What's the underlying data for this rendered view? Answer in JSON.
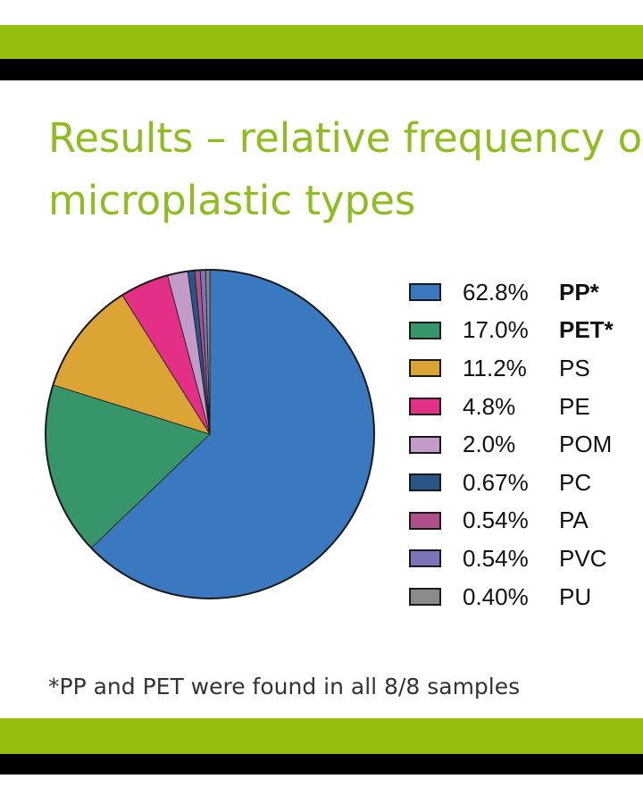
{
  "slide": {
    "title_line1": "Results – relative frequency of",
    "title_line2": "microplastic types",
    "footnote": "*PP and PET were found in all 8/8 samples"
  },
  "colors": {
    "accent_green": "#95bf0f",
    "band_black": "#000000",
    "title_green": "#8fbc1f"
  },
  "chart_data": {
    "type": "pie",
    "title": "",
    "start": "12 o'clock",
    "direction": "clockwise",
    "legend_position": "right",
    "slices": [
      {
        "label": "PP*",
        "pct_label": "62.8%",
        "value": 62.8,
        "color": "#3a78bf",
        "bold": true
      },
      {
        "label": "PET*",
        "pct_label": "17.0%",
        "value": 17.0,
        "color": "#36966a",
        "bold": true
      },
      {
        "label": "PS",
        "pct_label": "11.2%",
        "value": 11.2,
        "color": "#dca435",
        "bold": false
      },
      {
        "label": "PE",
        "pct_label": "4.8%",
        "value": 4.8,
        "color": "#e33086",
        "bold": false
      },
      {
        "label": "POM",
        "pct_label": "2.0%",
        "value": 2.0,
        "color": "#c29bc8",
        "bold": false
      },
      {
        "label": "PC",
        "pct_label": "0.67%",
        "value": 0.67,
        "color": "#2a5587",
        "bold": false
      },
      {
        "label": "PA",
        "pct_label": "0.54%",
        "value": 0.54,
        "color": "#b0508a",
        "bold": false
      },
      {
        "label": "PVC",
        "pct_label": "0.54%",
        "value": 0.54,
        "color": "#7b74b8",
        "bold": false
      },
      {
        "label": "PU",
        "pct_label": "0.40%",
        "value": 0.4,
        "color": "#8a8a8a",
        "bold": false
      }
    ]
  }
}
